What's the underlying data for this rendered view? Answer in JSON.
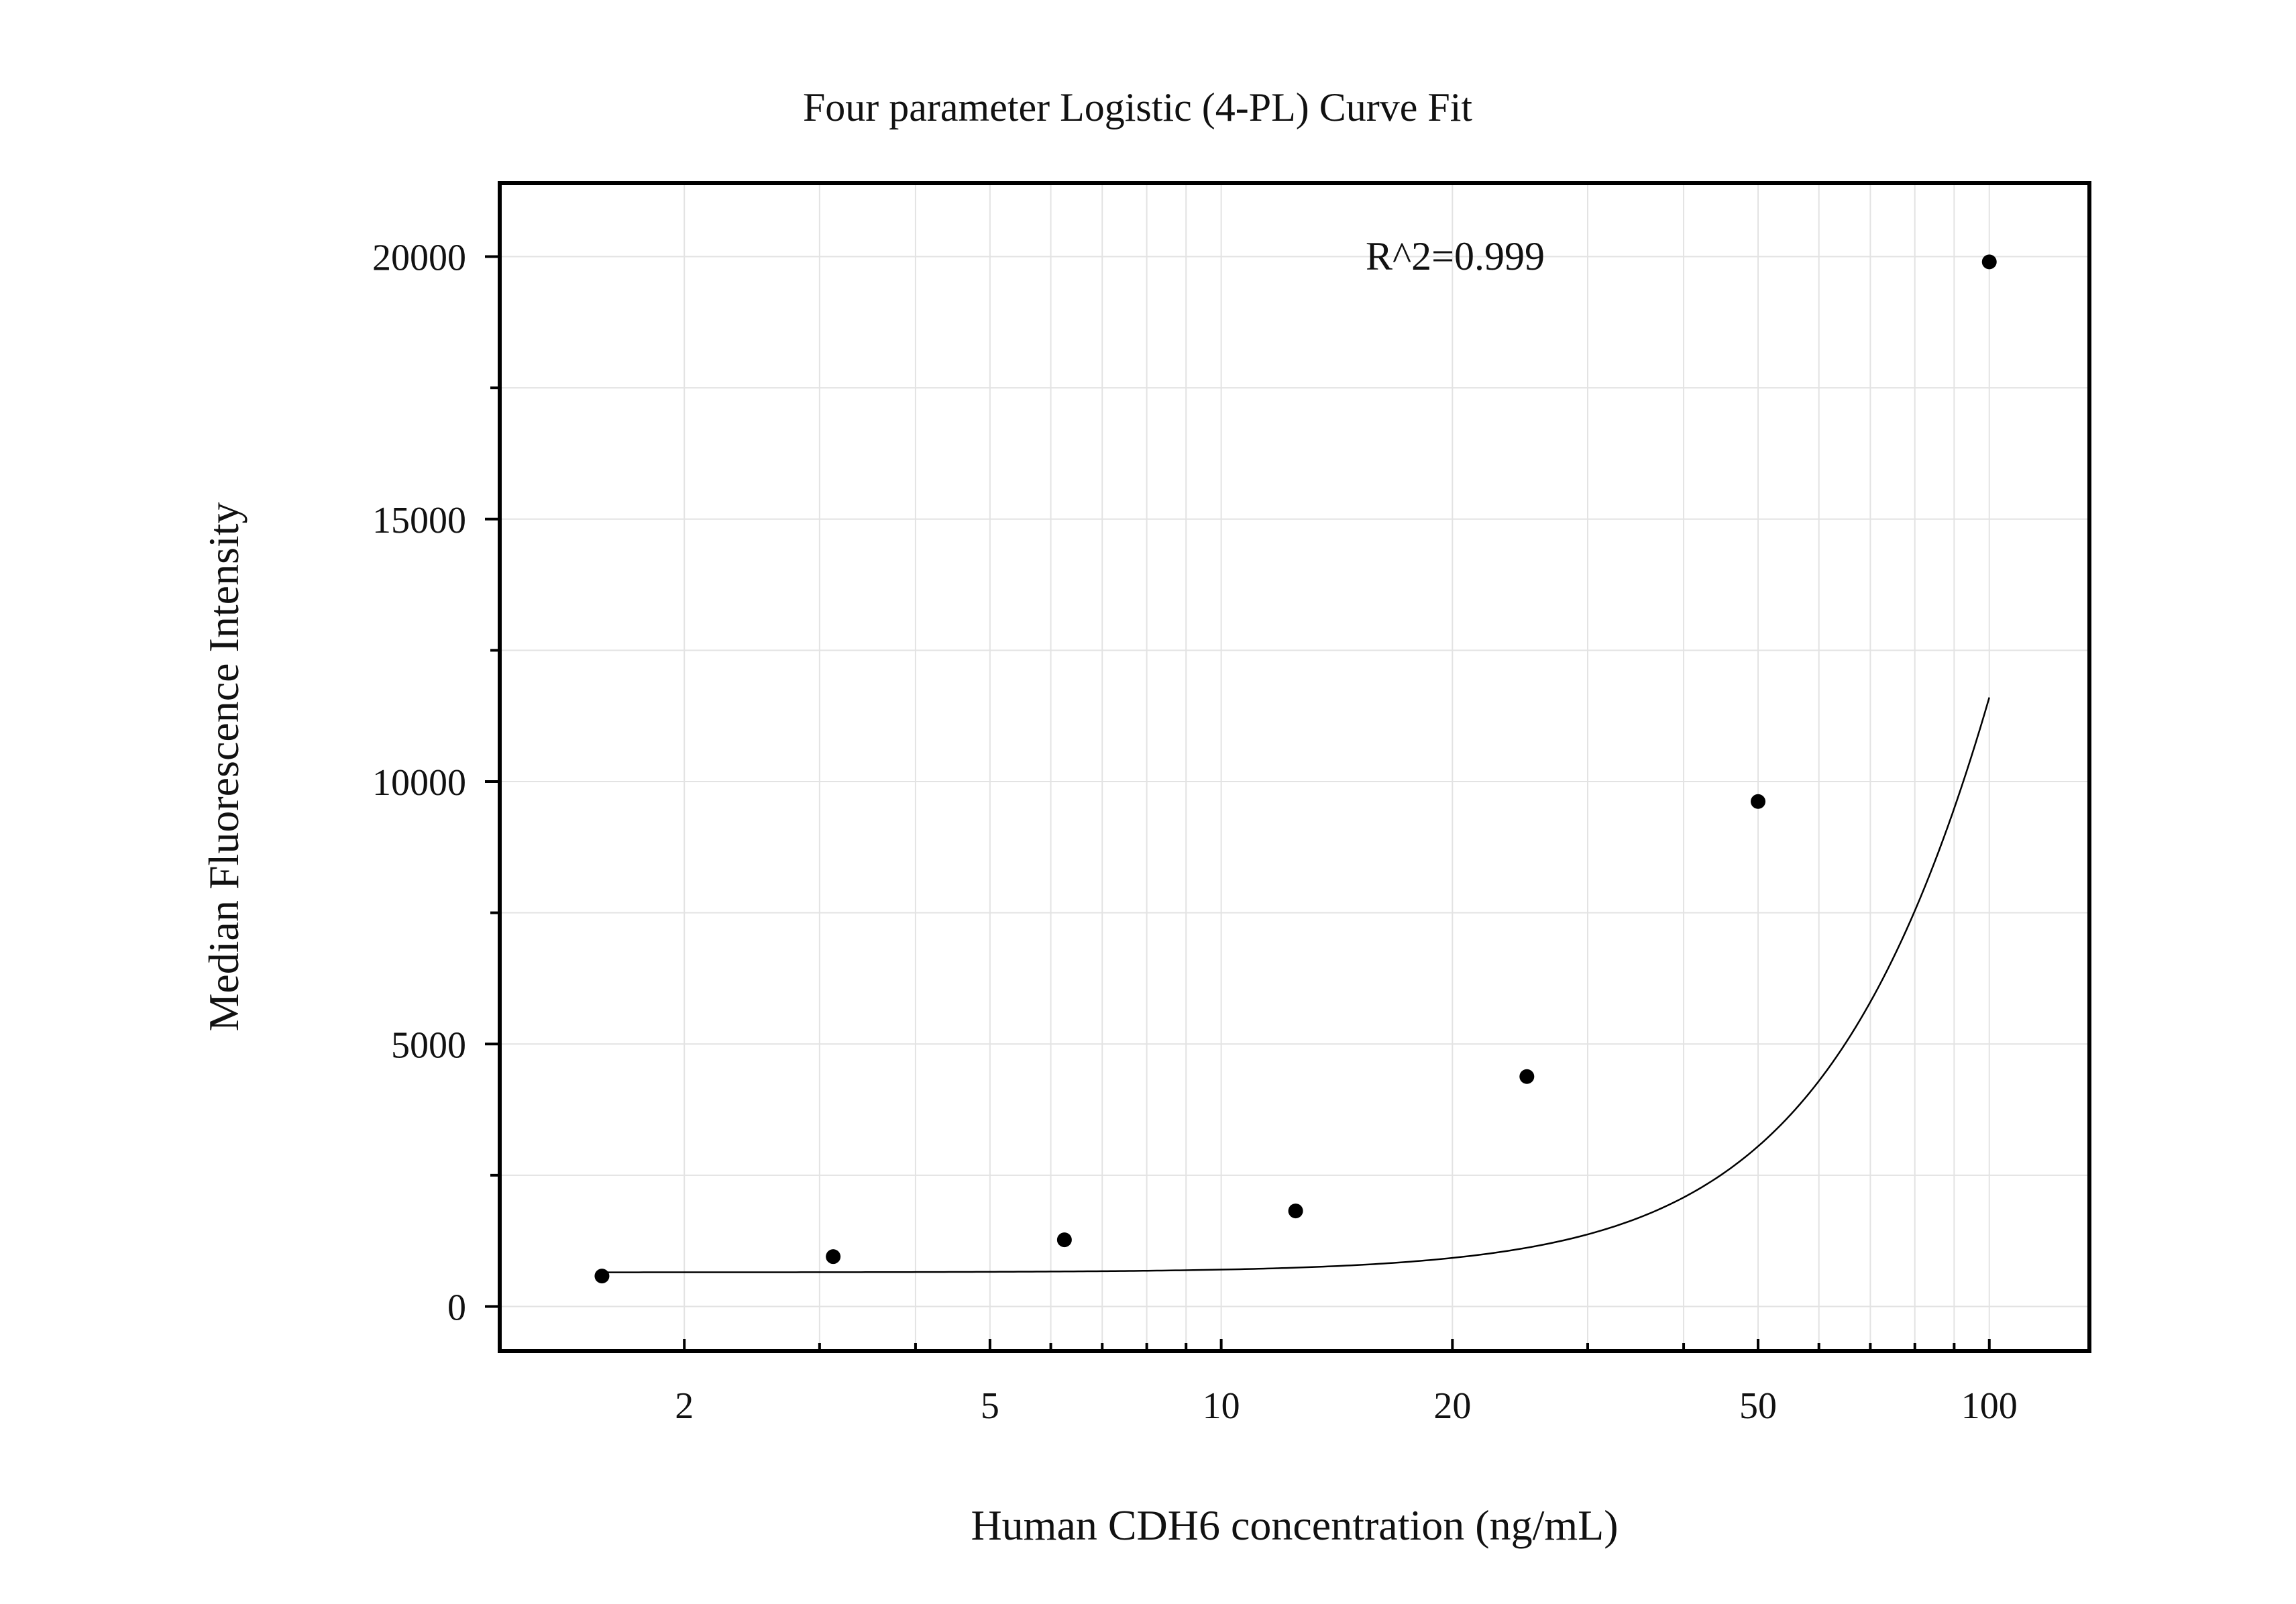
{
  "chart_data": {
    "type": "scatter",
    "title": "Four parameter Logistic (4-PL) Curve Fit",
    "xlabel": "Human CDH6 concentration (ng/mL)",
    "ylabel": "Median Fluorescence Intensity",
    "annotation": "R^2=0.999",
    "x_scale": "log",
    "xlim": [
      1.15,
      135
    ],
    "ylim": [
      -850,
      21400
    ],
    "x_ticks": [
      2,
      5,
      10,
      20,
      50,
      100
    ],
    "x_tick_labels": [
      "2",
      "5",
      "10",
      "20",
      "50",
      "100"
    ],
    "y_ticks": [
      0,
      5000,
      10000,
      15000,
      20000
    ],
    "y_tick_labels": [
      "0",
      "5000",
      "10000",
      "15000",
      "20000"
    ],
    "grid": true,
    "series": [
      {
        "points": [
          {
            "x": 1.5625,
            "y": 580
          },
          {
            "x": 3.125,
            "y": 950
          },
          {
            "x": 6.25,
            "y": 1270
          },
          {
            "x": 12.5,
            "y": 1820
          },
          {
            "x": 25,
            "y": 4380
          },
          {
            "x": 50,
            "y": 9620
          },
          {
            "x": 100,
            "y": 19900
          }
        ]
      }
    ],
    "fit_curve": {
      "model": "4PL",
      "A": 650,
      "B": 2.4,
      "C": 195,
      "D": 66000
    },
    "colors": {
      "points": "#000000",
      "curve": "#000000",
      "grid": "#e3e3e3",
      "frame": "#000000"
    }
  }
}
